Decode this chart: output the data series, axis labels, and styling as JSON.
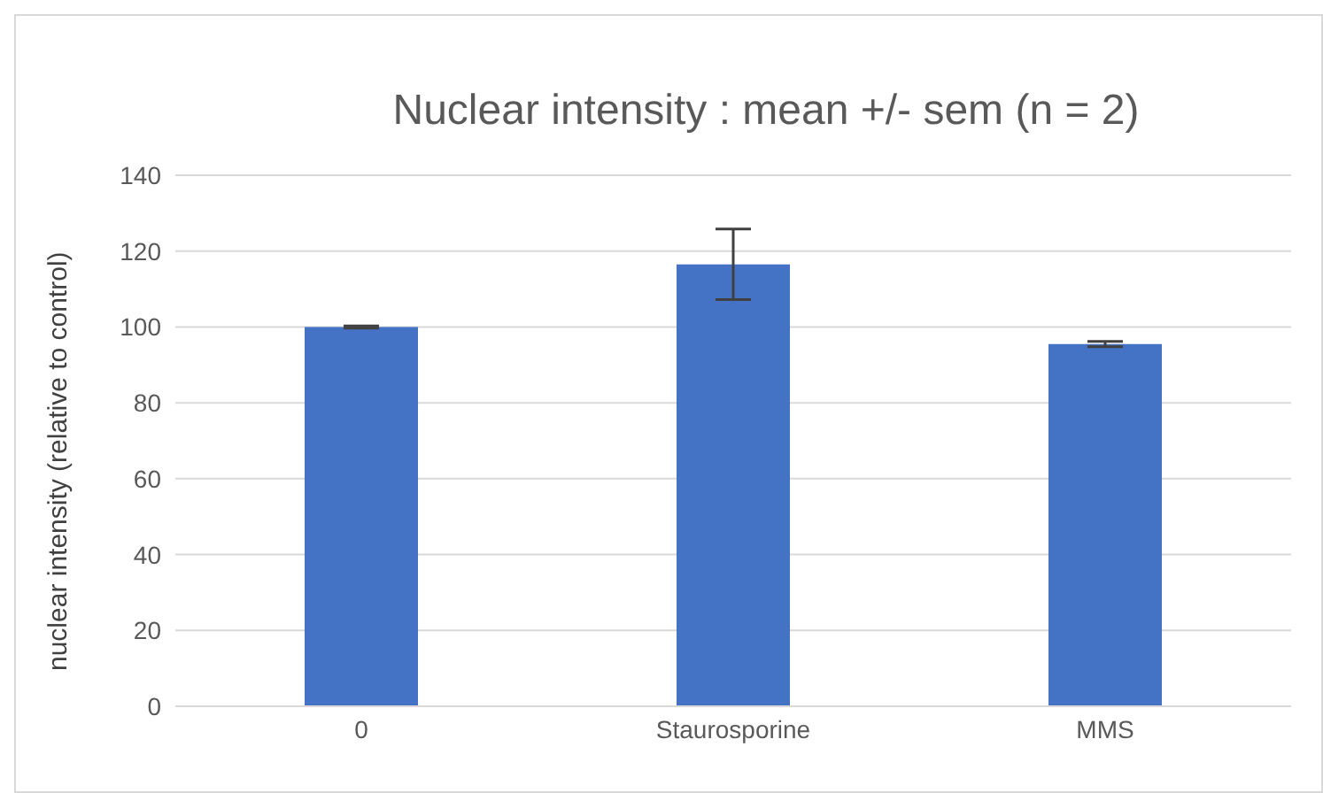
{
  "chart_data": {
    "type": "bar",
    "title": "Nuclear intensity  : mean +/- sem (n = 2)",
    "ylabel": "nuclear intensity (relative to control)",
    "categories": [
      "0",
      "Staurosporine",
      "MMS"
    ],
    "values": [
      100,
      116.5,
      95.5
    ],
    "errors": [
      0.3,
      9.3,
      0.7
    ],
    "color": "#4472c4",
    "ylim": [
      0,
      140
    ],
    "yticks": [
      0,
      20,
      40,
      60,
      80,
      100,
      120,
      140
    ],
    "grid": "y"
  }
}
